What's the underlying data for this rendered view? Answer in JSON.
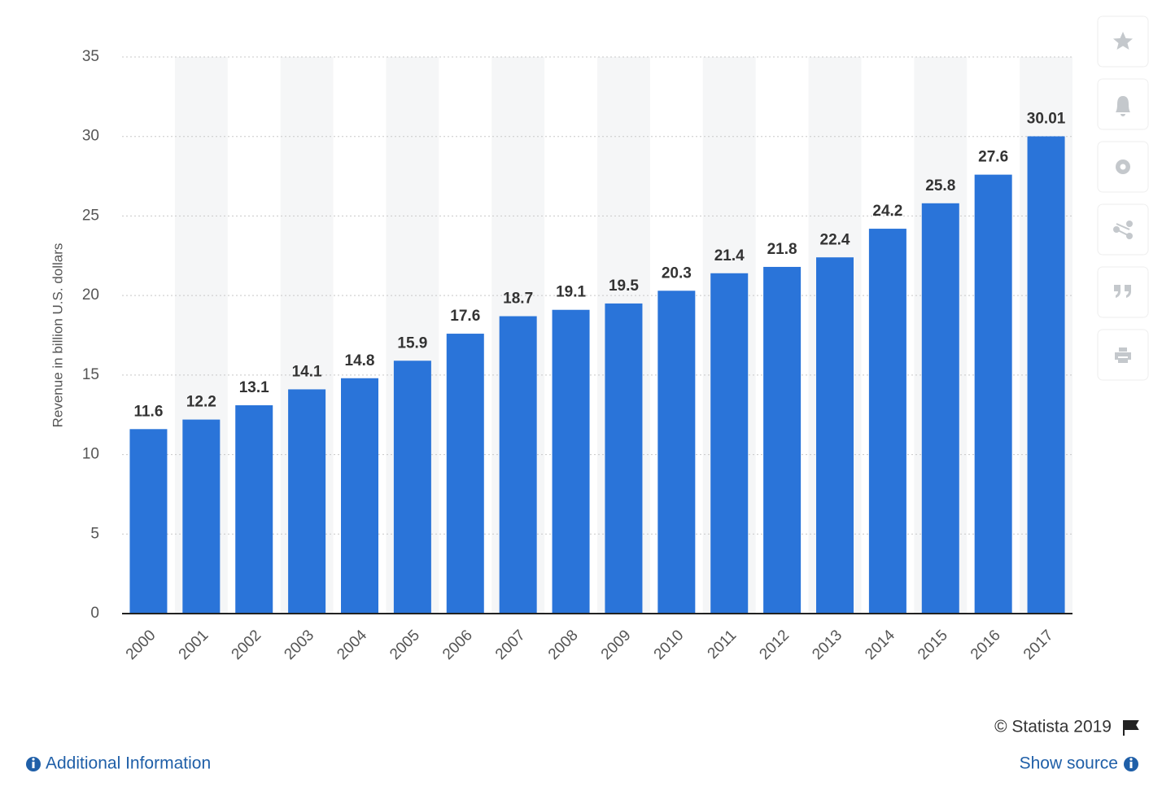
{
  "chart_data": {
    "type": "bar",
    "y_label": "Revenue in billion U.S. dollars",
    "categories": [
      "2000",
      "2001",
      "2002",
      "2003",
      "2004",
      "2005",
      "2006",
      "2007",
      "2008",
      "2009",
      "2010",
      "2011",
      "2012",
      "2013",
      "2014",
      "2015",
      "2016",
      "2017"
    ],
    "values": [
      11.6,
      12.2,
      13.1,
      14.1,
      14.8,
      15.9,
      17.6,
      18.7,
      19.1,
      19.5,
      20.3,
      21.4,
      21.8,
      22.4,
      24.2,
      25.8,
      27.6,
      30.01
    ],
    "color": "#2a74d9",
    "ylim": [
      0,
      35
    ],
    "yticks": [
      0,
      5,
      10,
      15,
      20,
      25,
      30,
      35
    ],
    "grid": true
  },
  "footer": {
    "credit": "© Statista 2019",
    "additional_info": "Additional Information",
    "show_source": "Show source"
  }
}
